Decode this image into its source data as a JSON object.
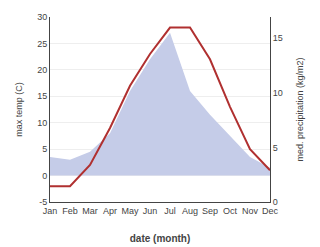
{
  "chart_data": {
    "type": "line",
    "categories": [
      "Jan",
      "Feb",
      "Mar",
      "Apr",
      "May",
      "Jun",
      "Jul",
      "Aug",
      "Sep",
      "Oct",
      "Nov",
      "Dec"
    ],
    "series": [
      {
        "type": "area",
        "color": "#c5cce8",
        "values": [
          3.5,
          3.0,
          4.5,
          8.0,
          16.0,
          22.0,
          27.0,
          16.0,
          11.5,
          7.5,
          3.5,
          1.5
        ]
      },
      {
        "type": "line",
        "color": "#b03030",
        "values": [
          -2,
          -2,
          2,
          9,
          17,
          23,
          28,
          28,
          22,
          13,
          5,
          1
        ]
      }
    ],
    "xlabel": "date (month)",
    "ylabel": "max temp (C)",
    "y2label": "med. precipitation (kg/m2)",
    "ylim": [
      -5,
      30
    ],
    "yticks": [
      -5,
      0,
      5,
      10,
      15,
      20,
      25,
      30
    ],
    "y2lim": [
      0,
      16.93548387096774
    ],
    "y2ticks": [
      0,
      5,
      10,
      15
    ],
    "grid": true
  }
}
